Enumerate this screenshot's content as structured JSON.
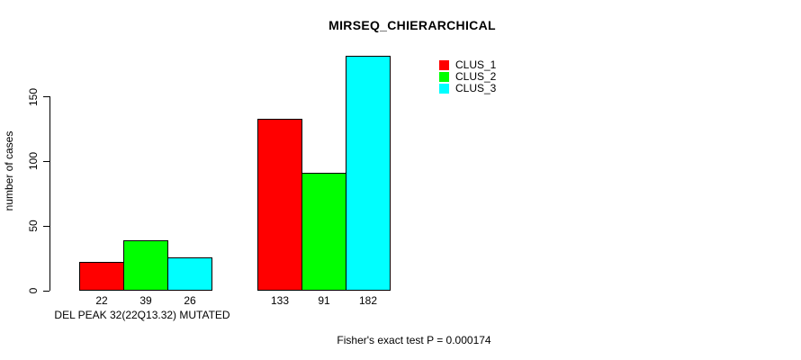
{
  "chart_data": {
    "type": "bar",
    "title": "MIRSEQ_CHIERARCHICAL",
    "ylabel": "number of cases",
    "xlabel": "DEL PEAK 32(22Q13.32) MUTATED",
    "footer": "Fisher's exact test P = 0.000174",
    "yticks": [
      0,
      50,
      100,
      150
    ],
    "ylim": [
      0,
      182
    ],
    "grid": false,
    "legend_position": "top-right",
    "series": [
      {
        "name": "CLUS_1",
        "color": "#ff0000",
        "values": [
          22,
          133
        ]
      },
      {
        "name": "CLUS_2",
        "color": "#00ff00",
        "values": [
          39,
          91
        ]
      },
      {
        "name": "CLUS_3",
        "color": "#00ffff",
        "values": [
          26,
          182
        ]
      }
    ],
    "bar_value_labels": [
      [
        "22",
        "39",
        "26"
      ],
      [
        "133",
        "91",
        "182"
      ]
    ]
  },
  "colors": {
    "background": "#ffffff",
    "axis": "#000000",
    "text": "#000000"
  }
}
